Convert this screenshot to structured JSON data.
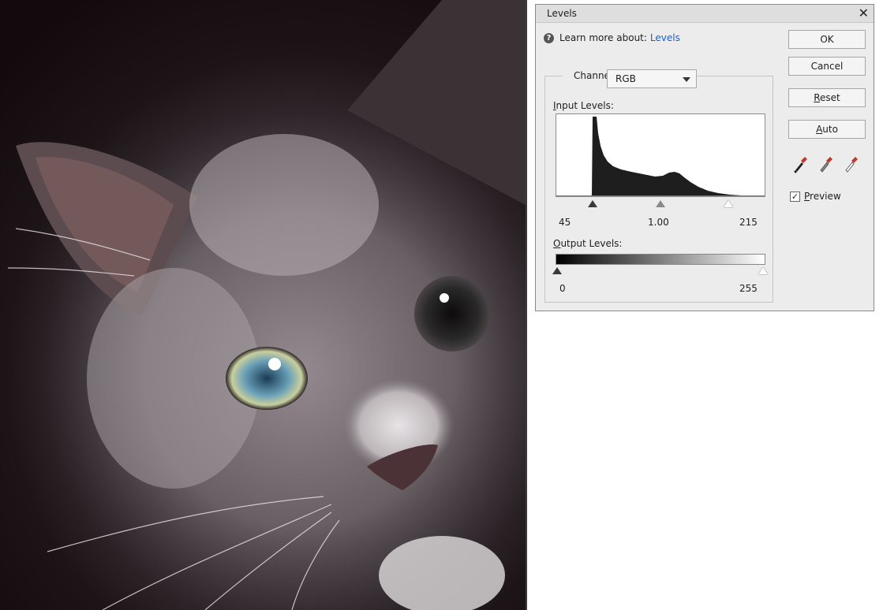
{
  "dialog": {
    "title": "Levels",
    "close_glyph": "✕",
    "help_icon_glyph": "?",
    "learn_more_prefix": "Learn more about:",
    "learn_more_link": "Levels",
    "buttons": {
      "ok": "OK",
      "cancel": "Cancel",
      "reset_access": "R",
      "reset_rest": "eset",
      "auto_access": "A",
      "auto_rest": "uto"
    },
    "channel": {
      "label": "Channel:",
      "selected": "RGB"
    },
    "input_levels": {
      "label_access": "I",
      "label_rest": "nput Levels:",
      "black": "45",
      "gamma": "1.00",
      "white": "215"
    },
    "output_levels": {
      "label_access": "O",
      "label_rest": "utput Levels:",
      "black": "0",
      "white": "255"
    },
    "preview": {
      "checked": true,
      "check_glyph": "✓",
      "label_access": "P",
      "label_rest": "review"
    },
    "eyedroppers": [
      "black-point-eyedropper-icon",
      "gray-point-eyedropper-icon",
      "white-point-eyedropper-icon"
    ]
  }
}
